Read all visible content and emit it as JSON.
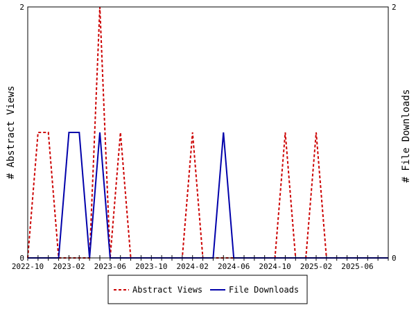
{
  "chart_data": {
    "type": "line",
    "ylabel_left": "# Abstract Views",
    "ylabel_right": "# File Downloads",
    "xlabel": "",
    "ylim": [
      0,
      2
    ],
    "yticks_left": [
      "0",
      "2"
    ],
    "yticks_right": [
      "0",
      "2"
    ],
    "xlim": [
      "2022-10",
      "2025-09"
    ],
    "xtick_labels": [
      "2022-10",
      "2023-02",
      "2023-06",
      "2023-10",
      "2024-02",
      "2024-06",
      "2024-10",
      "2025-02",
      "2025-06"
    ],
    "months": [
      "2022-10",
      "2022-11",
      "2022-12",
      "2023-01",
      "2023-02",
      "2023-03",
      "2023-04",
      "2023-05",
      "2023-06",
      "2023-07",
      "2023-08",
      "2023-09",
      "2023-10",
      "2023-11",
      "2023-12",
      "2024-01",
      "2024-02",
      "2024-03",
      "2024-04",
      "2024-05",
      "2024-06",
      "2024-07",
      "2024-08",
      "2024-09",
      "2024-10",
      "2024-11",
      "2024-12",
      "2025-01",
      "2025-02",
      "2025-03",
      "2025-04",
      "2025-05",
      "2025-06",
      "2025-07",
      "2025-08",
      "2025-09"
    ],
    "series": [
      {
        "name": "Abstract Views",
        "color": "#cc0000",
        "style": "dashed",
        "values": [
          0,
          1,
          1,
          0,
          0,
          0,
          0,
          2,
          0,
          1,
          0,
          0,
          0,
          0,
          0,
          0,
          1,
          0,
          0,
          0,
          0,
          0,
          0,
          0,
          0,
          1,
          0,
          0,
          1,
          0,
          0,
          0,
          0,
          0,
          0,
          0
        ]
      },
      {
        "name": "File Downloads",
        "color": "#0000aa",
        "style": "solid",
        "values": [
          0,
          0,
          0,
          0,
          1,
          1,
          0,
          1,
          0,
          0,
          0,
          0,
          0,
          0,
          0,
          0,
          0,
          0,
          0,
          1,
          0,
          0,
          0,
          0,
          0,
          0,
          0,
          0,
          0,
          0,
          0,
          0,
          0,
          0,
          0,
          0
        ]
      }
    ],
    "legend": {
      "position": "bottom",
      "entries": [
        "Abstract Views",
        "File Downloads"
      ]
    }
  }
}
